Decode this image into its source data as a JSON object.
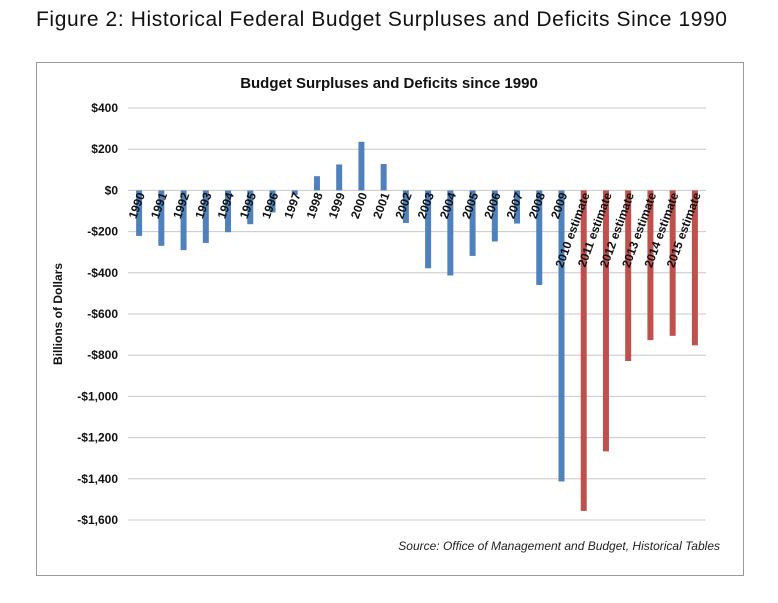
{
  "figure_title": "Figure 2: Historical Federal Budget Surpluses and Deficits Since 1990",
  "source": "Source: Office of Management and Budget, Historical Tables",
  "colors": {
    "actual": "#4f81bd",
    "estimate": "#c0504d",
    "grid": "#c8c8c8"
  },
  "chart_data": {
    "type": "bar",
    "title": "Budget  Surpluses and Deficits since 1990",
    "xlabel": "",
    "ylabel": "Billions of Dollars",
    "ylim": [
      -1600,
      400
    ],
    "yticks": [
      400,
      200,
      0,
      -200,
      -400,
      -600,
      -800,
      -1000,
      -1200,
      -1400,
      -1600
    ],
    "ytick_labels": [
      "$400",
      "$200",
      "$0",
      "-$200",
      "-$400",
      "-$600",
      "-$800",
      "-$1,000",
      "-$1,200",
      "-$1,400",
      "-$1,600"
    ],
    "grid": true,
    "legend": "none",
    "categories": [
      "1990",
      "1991",
      "1992",
      "1993",
      "1994",
      "1995",
      "1996",
      "1997",
      "1998",
      "1999",
      "2000",
      "2001",
      "2002",
      "2003",
      "2004",
      "2005",
      "2006",
      "2007",
      "2008",
      "2009",
      "2010 estimate",
      "2011 estimate",
      "2012 estimate",
      "2013 estimate",
      "2014 estimate",
      "2015 estimate"
    ],
    "series": [
      {
        "values": [
          -221,
          -269,
          -290,
          -255,
          -203,
          -164,
          -107,
          -22,
          69,
          126,
          236,
          128,
          -158,
          -378,
          -413,
          -318,
          -248,
          -161,
          -459,
          -1413,
          -1556,
          -1267,
          -828,
          -727,
          -706,
          -752
        ]
      }
    ],
    "estimate_from_index": 20
  }
}
